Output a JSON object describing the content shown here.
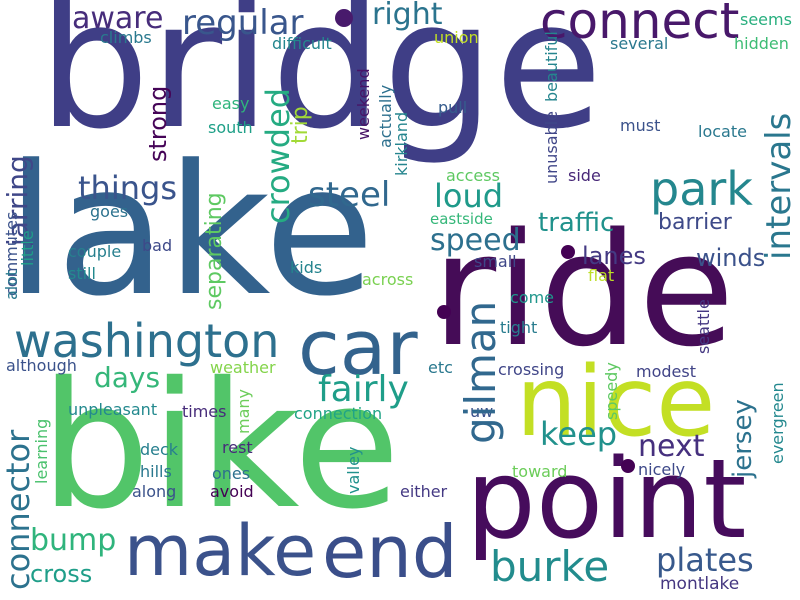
{
  "words": [
    {
      "text": "bridge",
      "color": "#3f3e86"
    },
    {
      "text": "lake",
      "color": "#33628d"
    },
    {
      "text": "ride",
      "color": "#450c57"
    },
    {
      "text": "bike",
      "color": "#52c569"
    },
    {
      "text": "point",
      "color": "#460c5c"
    },
    {
      "text": "nice",
      "color": "#c3df24"
    },
    {
      "text": "make",
      "color": "#3b528b"
    },
    {
      "text": "end",
      "color": "#3a4e8a"
    },
    {
      "text": "car",
      "color": "#33638d"
    },
    {
      "text": "washington",
      "color": "#2d708e"
    },
    {
      "text": "connect",
      "color": "#48186a"
    },
    {
      "text": "park",
      "color": "#24878e"
    },
    {
      "text": "regular",
      "color": "#39568c"
    },
    {
      "text": "aware",
      "color": "#472d7b"
    },
    {
      "text": "right",
      "color": "#2b748e"
    },
    {
      "text": "things",
      "color": "#3a548c"
    },
    {
      "text": "steel",
      "color": "#31688e"
    },
    {
      "text": "loud",
      "color": "#1f9a8a"
    },
    {
      "text": "speed",
      "color": "#2d708e"
    },
    {
      "text": "traffic",
      "color": "#20928c"
    },
    {
      "text": "barrier",
      "color": "#3e4a89"
    },
    {
      "text": "intervals",
      "color": "#2a778e"
    },
    {
      "text": "lanes",
      "color": "#443a83"
    },
    {
      "text": "winds",
      "color": "#3b528b"
    },
    {
      "text": "crowded",
      "color": "#25ab82"
    },
    {
      "text": "jarring",
      "color": "#3f4788"
    },
    {
      "text": "strong",
      "color": "#450457"
    },
    {
      "text": "trip",
      "color": "#a2da37"
    },
    {
      "text": "days",
      "color": "#35b779"
    },
    {
      "text": "fairly",
      "color": "#1f9e89"
    },
    {
      "text": "gilman",
      "color": "#31688e"
    },
    {
      "text": "keep",
      "color": "#21918c"
    },
    {
      "text": "next",
      "color": "#46307e"
    },
    {
      "text": "jersey",
      "color": "#2c728e"
    },
    {
      "text": "connector",
      "color": "#2c728e"
    },
    {
      "text": "bump",
      "color": "#2fb47c"
    },
    {
      "text": "cross",
      "color": "#1f9e89"
    },
    {
      "text": "burke",
      "color": "#228c8d"
    },
    {
      "text": "plates",
      "color": "#38598c"
    },
    {
      "text": "montlake",
      "color": "#453781"
    },
    {
      "text": "separating",
      "color": "#5ec962"
    },
    {
      "text": "climbs",
      "color": "#29798e"
    },
    {
      "text": "difficult",
      "color": "#24868e"
    },
    {
      "text": "union",
      "color": "#c2df23"
    },
    {
      "text": "seems",
      "color": "#29af7f"
    },
    {
      "text": "several",
      "color": "#2a788e"
    },
    {
      "text": "hidden",
      "color": "#3dbc74"
    },
    {
      "text": "weekend",
      "color": "#481467"
    },
    {
      "text": "actually",
      "color": "#2d708e"
    },
    {
      "text": "kirkland",
      "color": "#25858e"
    },
    {
      "text": "unusable",
      "color": "#404688"
    },
    {
      "text": "beautiful",
      "color": "#25858e"
    },
    {
      "text": "easy",
      "color": "#2fb47c"
    },
    {
      "text": "south",
      "color": "#1fa088"
    },
    {
      "text": "pull",
      "color": "#365c8d"
    },
    {
      "text": "must",
      "color": "#3b528b"
    },
    {
      "text": "locate",
      "color": "#2a788e"
    },
    {
      "text": "access",
      "color": "#5ec962"
    },
    {
      "text": "side",
      "color": "#482878"
    },
    {
      "text": "eastside",
      "color": "#35b779"
    },
    {
      "text": "alot",
      "color": "#2a788e"
    },
    {
      "text": "commutes",
      "color": "#3b528b"
    },
    {
      "text": "little",
      "color": "#1f9e89"
    },
    {
      "text": "goes",
      "color": "#2c728e"
    },
    {
      "text": "couple",
      "color": "#277f8e"
    },
    {
      "text": "bad",
      "color": "#3e4989"
    },
    {
      "text": "still",
      "color": "#23898e"
    },
    {
      "text": "kids",
      "color": "#25848e"
    },
    {
      "text": "small",
      "color": "#3f4788"
    },
    {
      "text": "flat",
      "color": "#bddf26"
    },
    {
      "text": "across",
      "color": "#7ad151"
    },
    {
      "text": "come",
      "color": "#1f968b"
    },
    {
      "text": "seattle",
      "color": "#453882"
    },
    {
      "text": "tight",
      "color": "#287c8e"
    },
    {
      "text": "although",
      "color": "#3b528b"
    },
    {
      "text": "weather",
      "color": "#84d44b"
    },
    {
      "text": "etc",
      "color": "#2a788e"
    },
    {
      "text": "crossing",
      "color": "#404688"
    },
    {
      "text": "modest",
      "color": "#414487"
    },
    {
      "text": "speedy",
      "color": "#5ec962"
    },
    {
      "text": "evergreen",
      "color": "#23888e"
    },
    {
      "text": "unpleasant",
      "color": "#23898e"
    },
    {
      "text": "times",
      "color": "#472c7a"
    },
    {
      "text": "many",
      "color": "#6ccd5a"
    },
    {
      "text": "connection",
      "color": "#20a486"
    },
    {
      "text": "uw",
      "color": "#3b528b"
    },
    {
      "text": "learning",
      "color": "#4ac16d"
    },
    {
      "text": "deck",
      "color": "#277f8e"
    },
    {
      "text": "rest",
      "color": "#472a7a"
    },
    {
      "text": "hills",
      "color": "#2a788e"
    },
    {
      "text": "ones",
      "color": "#2d708e"
    },
    {
      "text": "toward",
      "color": "#6ccd5a"
    },
    {
      "text": "nicely",
      "color": "#3e4989"
    },
    {
      "text": "along",
      "color": "#3b528b"
    },
    {
      "text": "avoid",
      "color": "#440154"
    },
    {
      "text": "valley",
      "color": "#21918c"
    },
    {
      "text": "either",
      "color": "#443983"
    },
    {
      "text": "dot_1",
      "color": "#481a6c"
    },
    {
      "text": "dot_2",
      "color": "#440154"
    },
    {
      "text": "dot_3",
      "color": "#440154"
    },
    {
      "text": "dot_4",
      "color": "#440154"
    }
  ]
}
